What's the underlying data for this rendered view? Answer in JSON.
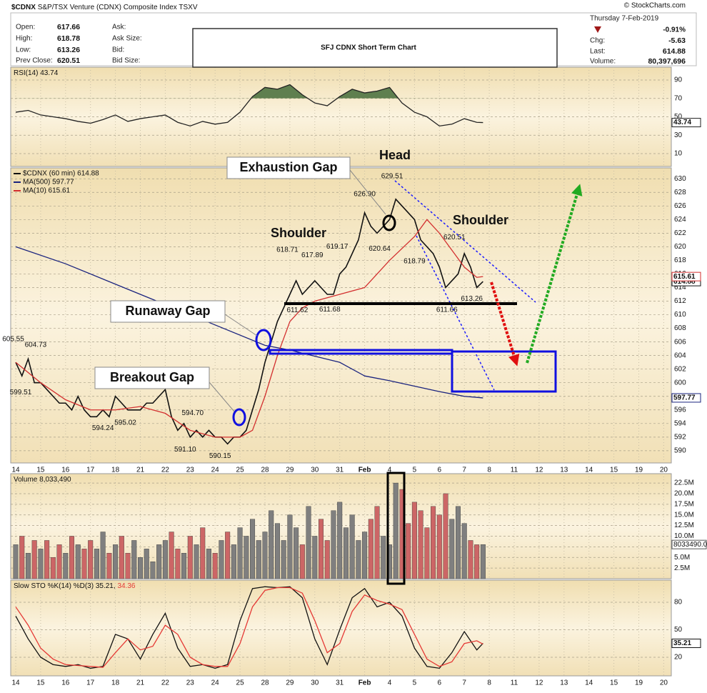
{
  "header": {
    "symbol": "$CDNX",
    "name": "S&P/TSX Venture (CDNX) Composite Index",
    "exchange": "TSXV",
    "fields": [
      [
        "Open:",
        "617.66"
      ],
      [
        "High:",
        "618.78"
      ],
      [
        "Low:",
        "613.26"
      ],
      [
        "Prev Close:",
        "620.51"
      ]
    ],
    "fields2": [
      "Ask:",
      "Ask Size:",
      "Bid:",
      "Bid Size:"
    ],
    "date": "Thursday 7-Feb-2019",
    "change_pct": "-0.91%",
    "stats": [
      [
        "Chg:",
        "-5.63"
      ],
      [
        "Last:",
        "614.88"
      ],
      [
        "Volume:",
        "80,397,696"
      ]
    ],
    "copyright": "© StockCharts.com"
  },
  "annotations": {
    "title": "SFJ CDNX Short Term Chart",
    "exhaustion_gap": "Exhaustion Gap",
    "head": "Head",
    "shoulders": [
      "Shoulder",
      "Shoulder"
    ],
    "runaway_gap": "Runaway Gap",
    "breakout_gap": "Breakout Gap"
  },
  "chart_data": [
    {
      "type": "line",
      "title": "RSI(14) 43.74",
      "ylim": [
        -4,
        104
      ],
      "yticks": [
        10,
        30,
        50,
        70,
        90
      ],
      "grid": true,
      "fill_above": 70,
      "fill_color": "#5f7f4f",
      "tag_series": [
        0
      ],
      "series": [
        {
          "name": "RSI(14)",
          "color": "#222222",
          "x": [
            0,
            0.5,
            1,
            1.5,
            2,
            2.5,
            3,
            3.5,
            4,
            4.5,
            5,
            5.5,
            6,
            6.5,
            7,
            7.5,
            8,
            8.5,
            9,
            9.5,
            10,
            10.5,
            11,
            11.5,
            12,
            12.5,
            13,
            13.5,
            14,
            14.5,
            15,
            15.5,
            16,
            16.5,
            17,
            17.5,
            18,
            18.5,
            18.75
          ],
          "values": [
            55,
            57,
            52,
            50,
            48,
            45,
            43,
            47,
            52,
            45,
            48,
            50,
            52,
            44,
            40,
            45,
            42,
            44,
            55,
            72,
            82,
            80,
            85,
            74,
            65,
            62,
            72,
            80,
            76,
            78,
            82,
            65,
            55,
            50,
            40,
            42,
            48,
            44,
            43.74
          ]
        }
      ]
    },
    {
      "type": "line",
      "ylim": [
        588.2,
        631.6
      ],
      "grid": true,
      "legend": "top-left",
      "tag_series": [
        0,
        2,
        1
      ],
      "yticks": [
        590,
        592,
        594,
        596,
        598,
        600,
        602,
        604,
        606,
        608,
        610,
        612,
        614,
        616,
        618,
        620,
        622,
        624,
        626,
        628,
        630
      ],
      "categories": [
        "14",
        "15",
        "16",
        "17",
        "18",
        "21",
        "22",
        "23",
        "24",
        "25",
        "28",
        "29",
        "30",
        "31",
        "Feb",
        "4",
        "5",
        "6",
        "7",
        "8",
        "11",
        "12",
        "13",
        "14",
        "15",
        "19",
        "20"
      ],
      "series": [
        {
          "name": "$CDNX (60 min) 614.88",
          "color": "#111111",
          "x": [
            0,
            0.25,
            0.5,
            0.75,
            1,
            1.25,
            1.5,
            1.75,
            2,
            2.25,
            2.5,
            2.75,
            3,
            3.25,
            3.5,
            3.75,
            4,
            4.25,
            4.5,
            4.75,
            5,
            5.25,
            5.5,
            5.75,
            6,
            6.25,
            6.5,
            6.75,
            7,
            7.25,
            7.5,
            7.75,
            8,
            8.25,
            8.5,
            8.75,
            9,
            9.25,
            9.5,
            9.75,
            10,
            10.25,
            10.5,
            10.75,
            11,
            11.25,
            11.5,
            11.75,
            12,
            12.25,
            12.5,
            12.75,
            13,
            13.25,
            13.5,
            13.75,
            14,
            14.25,
            14.5,
            14.75,
            15,
            15.25,
            15.5,
            15.75,
            16,
            16.25,
            16.5,
            16.75,
            17,
            17.25,
            17.5,
            17.75,
            18,
            18.25,
            18.5,
            18.75
          ],
          "values": [
            603,
            601,
            603.5,
            600,
            600,
            599,
            598,
            597,
            597,
            596,
            598,
            596,
            595,
            595,
            596,
            595,
            598,
            597,
            596,
            596,
            596,
            597,
            597,
            598,
            599,
            595,
            593,
            594,
            592,
            593,
            592,
            593,
            592,
            592,
            591,
            592,
            592,
            593,
            596,
            599,
            603,
            606,
            609,
            611,
            613,
            615,
            613,
            614,
            615,
            614,
            613,
            613,
            616,
            617,
            619,
            621,
            625,
            623,
            622,
            623,
            624,
            627,
            626,
            625,
            624,
            621,
            620,
            619,
            617,
            614,
            615,
            616,
            619,
            617,
            614,
            614.88
          ]
        },
        {
          "name": "MA(500) 597.77",
          "color": "#1a237e",
          "x": [
            0,
            2,
            4,
            6,
            8,
            10,
            11,
            13,
            14,
            15,
            16,
            17,
            18,
            18.75
          ],
          "values": [
            620,
            617.5,
            614.5,
            611.5,
            608.5,
            605.5,
            604.8,
            603,
            601,
            600.3,
            599.5,
            598.7,
            598,
            597.77
          ]
        },
        {
          "name": "MA(10) 615.61",
          "color": "#d32f2f",
          "x": [
            0,
            1,
            2,
            3,
            4,
            5,
            6,
            7,
            8,
            9,
            9.5,
            10,
            10.5,
            11,
            11.5,
            12,
            13,
            14,
            15,
            16,
            16.5,
            17,
            17.5,
            18,
            18.5,
            18.75
          ],
          "values": [
            603,
            600,
            597.5,
            596,
            596,
            596.5,
            595.5,
            593,
            592,
            592,
            593,
            598,
            604,
            609,
            611,
            612,
            613,
            614,
            618,
            621.5,
            624,
            622,
            619.5,
            617,
            615.5,
            615.61
          ]
        }
      ],
      "point_labels": [
        {
          "x": -0.1,
          "value": 605.55,
          "label": "605.55",
          "position": "above"
        },
        {
          "x": 0.8,
          "value": 604.73,
          "label": "604.73",
          "position": "above"
        },
        {
          "x": 0.2,
          "value": 599.51,
          "label": "599.51",
          "position": "below"
        },
        {
          "x": 3.5,
          "value": 594.24,
          "label": "594.24",
          "position": "below"
        },
        {
          "x": 4.4,
          "value": 595.02,
          "label": "595.02",
          "position": "below"
        },
        {
          "x": 7.1,
          "value": 594.7,
          "label": "594.70",
          "position": "above"
        },
        {
          "x": 6.8,
          "value": 591.1,
          "label": "591.10",
          "position": "below"
        },
        {
          "x": 8.2,
          "value": 590.15,
          "label": "590.15",
          "position": "below"
        },
        {
          "x": 10.9,
          "value": 618.71,
          "label": "618.71",
          "position": "above"
        },
        {
          "x": 11.9,
          "value": 617.89,
          "label": "617.89",
          "position": "above"
        },
        {
          "x": 12.9,
          "value": 619.17,
          "label": "619.17",
          "position": "above"
        },
        {
          "x": 11.3,
          "value": 611.62,
          "label": "611.62",
          "position": "below"
        },
        {
          "x": 12.6,
          "value": 611.68,
          "label": "611.68",
          "position": "below"
        },
        {
          "x": 14.0,
          "value": 626.9,
          "label": "626.90",
          "position": "above"
        },
        {
          "x": 14.6,
          "value": 620.64,
          "label": "620.64",
          "position": "below"
        },
        {
          "x": 15.1,
          "value": 629.51,
          "label": "629.51",
          "position": "above"
        },
        {
          "x": 16.0,
          "value": 618.79,
          "label": "618.79",
          "position": "below"
        },
        {
          "x": 17.6,
          "value": 620.51,
          "label": "620.51",
          "position": "above"
        },
        {
          "x": 17.3,
          "value": 611.66,
          "label": "611.66",
          "position": "below"
        },
        {
          "x": 18.3,
          "value": 613.26,
          "label": "613.26",
          "position": "below"
        }
      ]
    },
    {
      "type": "bar",
      "title": "Volume 8,033,490",
      "ylim": [
        0,
        24.7
      ],
      "grid": true,
      "up_color": "#7f7f7f",
      "down_color": "#cc6666",
      "last_label": "8033490.0",
      "yticks": [
        {
          "value": 2.5,
          "label": "2.5M"
        },
        {
          "value": 5,
          "label": "5.0M"
        },
        {
          "value": 7.5,
          "label": "7.5M"
        },
        {
          "value": 10,
          "label": "10.0M"
        },
        {
          "value": 12.5,
          "label": "12.5M"
        },
        {
          "value": 15,
          "label": "15.0M"
        },
        {
          "value": 17.5,
          "label": "17.5M"
        },
        {
          "value": 20,
          "label": "20.0M"
        },
        {
          "value": 22.5,
          "label": "22.5M"
        }
      ],
      "x": [
        0,
        0.25,
        0.5,
        0.75,
        1,
        1.25,
        1.5,
        1.75,
        2,
        2.25,
        2.5,
        2.75,
        3,
        3.25,
        3.5,
        3.75,
        4,
        4.25,
        4.5,
        4.75,
        5,
        5.25,
        5.5,
        5.75,
        6,
        6.25,
        6.5,
        6.75,
        7,
        7.25,
        7.5,
        7.75,
        8,
        8.25,
        8.5,
        8.75,
        9,
        9.25,
        9.5,
        9.75,
        10,
        10.25,
        10.5,
        10.75,
        11,
        11.25,
        11.5,
        11.75,
        12,
        12.25,
        12.5,
        12.75,
        13,
        13.25,
        13.5,
        13.75,
        14,
        14.25,
        14.5,
        14.75,
        15,
        15.25,
        15.5,
        15.75,
        16,
        16.25,
        16.5,
        16.75,
        17,
        17.25,
        17.5,
        17.75,
        18,
        18.25,
        18.5,
        18.75
      ],
      "values": [
        8,
        10,
        6,
        9,
        7,
        9,
        5,
        8,
        6,
        10,
        8,
        7,
        9,
        7,
        11,
        6,
        8,
        10,
        6,
        9,
        5,
        7,
        4,
        8,
        9,
        11,
        7,
        6,
        10,
        8,
        12,
        7,
        6,
        9,
        11,
        8,
        12,
        10,
        14,
        9,
        11,
        16,
        13,
        9,
        15,
        12,
        8,
        17,
        10,
        14,
        9,
        16,
        18,
        12,
        15,
        9,
        11,
        14,
        17,
        10,
        8,
        22.5,
        21,
        13,
        18,
        16,
        12,
        17,
        15,
        20,
        14,
        17,
        13,
        9,
        8,
        8.03349
      ]
    },
    {
      "type": "line",
      "title": "Slow STO %K(14) %D(3) 35.21,",
      "title_value_series": 1,
      "ylim": [
        -0.3,
        104.2
      ],
      "yticks": [
        20,
        50,
        80
      ],
      "grid": true,
      "tag_series": [
        0
      ],
      "categories": [
        "14",
        "15",
        "16",
        "17",
        "18",
        "21",
        "22",
        "23",
        "24",
        "25",
        "28",
        "29",
        "30",
        "31",
        "Feb",
        "4",
        "5",
        "6",
        "7",
        "8",
        "11",
        "12",
        "13",
        "14",
        "15",
        "19",
        "20"
      ],
      "series": [
        {
          "name": "%K(14)",
          "color": "#111111",
          "x": [
            0,
            0.5,
            1,
            1.5,
            2,
            2.5,
            3,
            3.5,
            4,
            4.5,
            5,
            5.5,
            6,
            6.5,
            7,
            7.5,
            8,
            8.5,
            9,
            9.5,
            10,
            10.5,
            11,
            11.5,
            12,
            12.5,
            13,
            13.5,
            14,
            14.5,
            15,
            15.5,
            16,
            16.5,
            17,
            17.5,
            18,
            18.5,
            18.75
          ],
          "values": [
            65,
            40,
            20,
            12,
            10,
            12,
            8,
            10,
            45,
            40,
            18,
            45,
            68,
            30,
            10,
            12,
            8,
            12,
            60,
            95,
            97,
            96,
            97,
            85,
            40,
            12,
            50,
            85,
            95,
            75,
            80,
            65,
            30,
            10,
            8,
            25,
            48,
            28,
            35.21
          ]
        },
        {
          "name": "%D(3)",
          "color": "#e53935",
          "x": [
            0,
            0.5,
            1,
            1.5,
            2,
            2.5,
            3,
            3.5,
            4,
            4.5,
            5,
            5.5,
            6,
            6.5,
            7,
            7.5,
            8,
            8.5,
            9,
            9.5,
            10,
            10.5,
            11,
            11.5,
            12,
            12.5,
            13,
            13.5,
            14,
            14.5,
            15,
            15.5,
            16,
            16.5,
            17,
            17.5,
            18,
            18.5,
            18.75
          ],
          "values": [
            75,
            55,
            30,
            18,
            12,
            11,
            10,
            9,
            25,
            40,
            28,
            32,
            55,
            45,
            20,
            12,
            10,
            10,
            35,
            75,
            93,
            96,
            96,
            90,
            60,
            25,
            35,
            70,
            88,
            82,
            78,
            72,
            45,
            18,
            10,
            15,
            35,
            38,
            34.36
          ]
        }
      ]
    }
  ]
}
